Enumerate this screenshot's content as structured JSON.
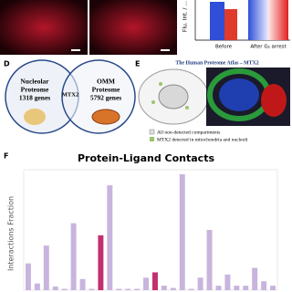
{
  "top_panel": {
    "y_label": "Flu. Int. / ...",
    "x_labels": [
      "Before",
      "After G₂ arrest"
    ]
  },
  "panel_d": {
    "label": "D",
    "left_title": "Nucleolar",
    "left_line2": "Proteome",
    "left_count": "1318 genes",
    "overlap": "MTX2",
    "right_title": "OMM",
    "right_line2": "Proteome",
    "right_count": "5792 genes"
  },
  "panel_e": {
    "label": "E",
    "title": "The Human Proteome Atlas – MTX2",
    "legend": [
      "All non-detected compartments",
      "MTX2 detected in mitochondria and nucleoli"
    ]
  },
  "panel_f": {
    "label": "F",
    "type": "bar",
    "title": "Protein-Ligand Contacts",
    "y_label": "Interactions Fraction",
    "ylim": [
      0,
      0.27
    ],
    "values": [
      0.06,
      0.015,
      0.1,
      0.008,
      0.003,
      0.15,
      0.025,
      0.003,
      0.123,
      0.235,
      0.003,
      0.003,
      0.003,
      0.028,
      0.04,
      0.01,
      0.005,
      0.26,
      0.003,
      0.028,
      0.135,
      0.01,
      0.035,
      0.01,
      0.01,
      0.05,
      0.02,
      0.01
    ],
    "colors": [
      "#c8b4dd",
      "#c8b4dd",
      "#c8b4dd",
      "#c8b4dd",
      "#c8b4dd",
      "#c8b4dd",
      "#c8b4dd",
      "#c8b4dd",
      "#c2306e",
      "#c8b4dd",
      "#c8b4dd",
      "#c8b4dd",
      "#c8b4dd",
      "#c8b4dd",
      "#c2306e",
      "#c8b4dd",
      "#c8b4dd",
      "#c8b4dd",
      "#c8b4dd",
      "#c8b4dd",
      "#c8b4dd",
      "#c8b4dd",
      "#c8b4dd",
      "#c8b4dd",
      "#c8b4dd",
      "#c8b4dd",
      "#c8b4dd",
      "#c8b4dd"
    ]
  }
}
